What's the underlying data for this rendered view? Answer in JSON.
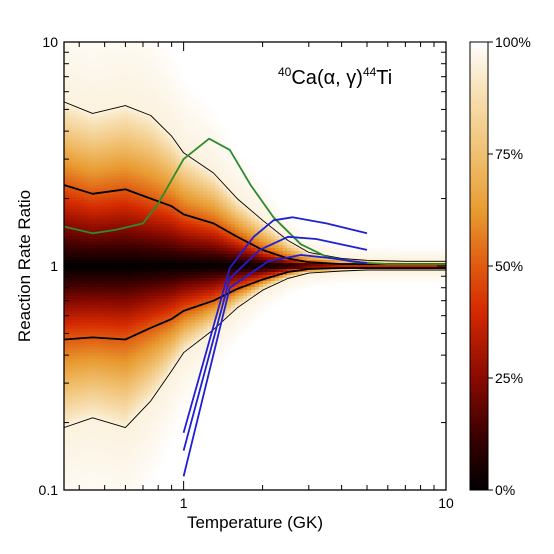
{
  "chart_data": {
    "type": "density",
    "title": "",
    "xlabel": "Temperature (GK)",
    "ylabel": "Reaction Rate Ratio",
    "xscale": "log",
    "yscale": "log",
    "xlim": [
      0.35,
      10
    ],
    "ylim": [
      0.1,
      10
    ],
    "x_ticks": [
      {
        "value": 1,
        "label": "1"
      },
      {
        "value": 10,
        "label": "10"
      }
    ],
    "y_ticks": [
      {
        "value": 0.1,
        "label": "0.1"
      },
      {
        "value": 1,
        "label": "1"
      },
      {
        "value": 10,
        "label": "10"
      }
    ],
    "annotation": {
      "mass_a": "40",
      "element_a": "Ca",
      "reaction": "(α, γ)",
      "mass_b": "44",
      "element_b": "Ti"
    },
    "colorbar": {
      "ticks": [
        {
          "value": 0,
          "label": "0%"
        },
        {
          "value": 25,
          "label": "25%"
        },
        {
          "value": 50,
          "label": "50%"
        },
        {
          "value": 75,
          "label": "75%"
        },
        {
          "value": 100,
          "label": "100%"
        }
      ],
      "colors": [
        "#000000",
        "#3a0000",
        "#8a0a00",
        "#d42a00",
        "#e05a10",
        "#e89a30",
        "#f0c070",
        "#f8e4bc",
        "#ffffff"
      ],
      "stops": [
        0,
        0.12,
        0.25,
        0.4,
        0.5,
        0.62,
        0.75,
        0.9,
        1
      ]
    },
    "x": [
      0.35,
      0.45,
      0.6,
      0.75,
      0.9,
      1.0,
      1.3,
      1.6,
      2.0,
      2.5,
      3.0,
      4.0,
      5.0,
      7.0,
      10.0
    ],
    "bands": {
      "outer_upper": [
        5.4,
        4.8,
        5.2,
        4.7,
        3.8,
        3.2,
        2.6,
        2.0,
        1.6,
        1.3,
        1.15,
        1.08,
        1.06,
        1.05,
        1.05
      ],
      "inner_upper": [
        2.3,
        2.1,
        2.2,
        2.0,
        1.85,
        1.7,
        1.55,
        1.35,
        1.18,
        1.08,
        1.04,
        1.02,
        1.02,
        1.02,
        1.02
      ],
      "inner_lower": [
        0.47,
        0.48,
        0.47,
        0.53,
        0.58,
        0.63,
        0.7,
        0.79,
        0.87,
        0.94,
        0.97,
        0.98,
        0.98,
        0.98,
        0.98
      ],
      "outer_lower": [
        0.19,
        0.21,
        0.19,
        0.25,
        0.34,
        0.41,
        0.52,
        0.65,
        0.78,
        0.88,
        0.93,
        0.95,
        0.96,
        0.96,
        0.96
      ]
    },
    "series": [
      {
        "color": "#2e8b2e",
        "points": [
          [
            0.35,
            1.5
          ],
          [
            0.45,
            1.4
          ],
          [
            0.55,
            1.45
          ],
          [
            0.7,
            1.55
          ],
          [
            0.8,
            1.9
          ],
          [
            1.0,
            3.0
          ],
          [
            1.25,
            3.7
          ],
          [
            1.5,
            3.3
          ],
          [
            1.8,
            2.3
          ],
          [
            2.2,
            1.65
          ],
          [
            2.8,
            1.25
          ],
          [
            3.5,
            1.1
          ],
          [
            4.5,
            1.04
          ],
          [
            6.0,
            1.02
          ],
          [
            10.0,
            1.02
          ]
        ]
      },
      {
        "color": "#1f1fd6",
        "points": [
          [
            1.0,
            0.18
          ],
          [
            1.5,
            0.98
          ],
          [
            1.85,
            1.35
          ],
          [
            2.2,
            1.6
          ],
          [
            2.6,
            1.65
          ],
          [
            3.5,
            1.55
          ],
          [
            5.0,
            1.4
          ]
        ]
      },
      {
        "color": "#1f1fd6",
        "points": [
          [
            1.0,
            0.15
          ],
          [
            1.5,
            0.88
          ],
          [
            1.95,
            1.18
          ],
          [
            2.5,
            1.35
          ],
          [
            3.2,
            1.32
          ],
          [
            5.0,
            1.18
          ]
        ]
      },
      {
        "color": "#1f1fd6",
        "points": [
          [
            1.0,
            0.115
          ],
          [
            1.5,
            0.8
          ],
          [
            2.1,
            1.05
          ],
          [
            2.8,
            1.12
          ],
          [
            3.5,
            1.09
          ],
          [
            5.0,
            1.03
          ]
        ]
      }
    ]
  }
}
